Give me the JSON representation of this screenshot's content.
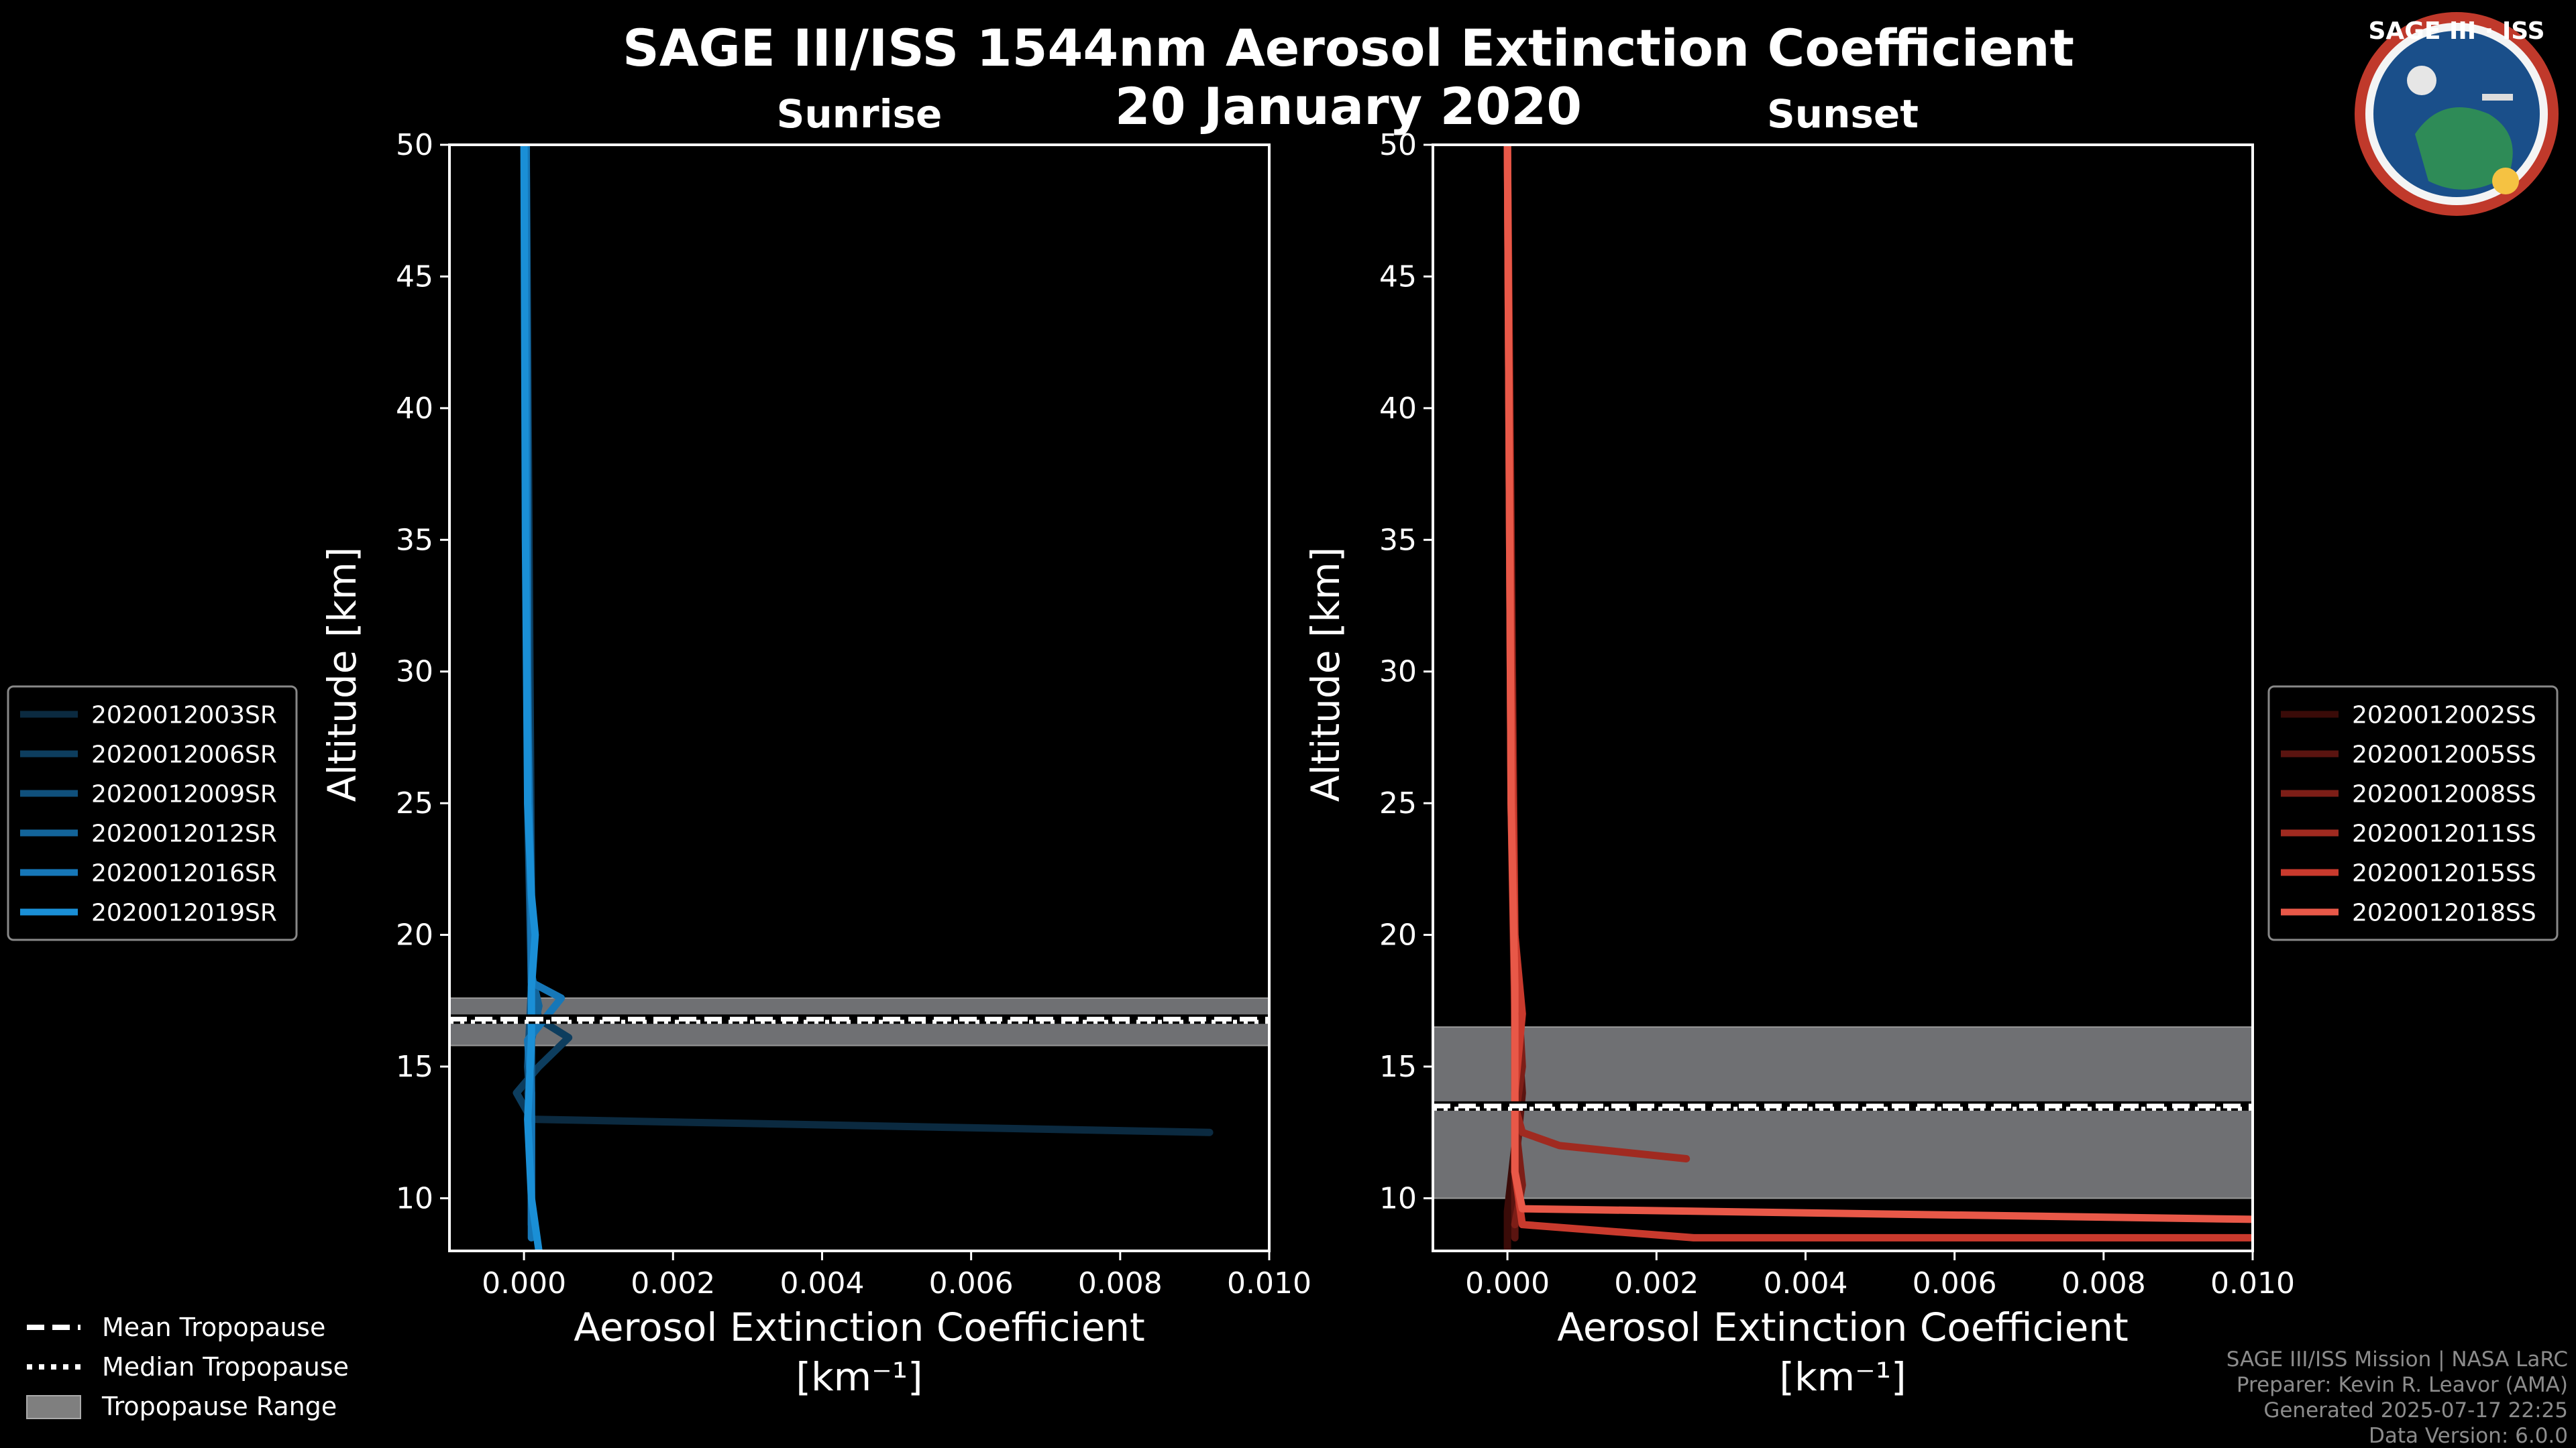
{
  "title": "SAGE III/ISS 1544nm Aerosol Extinction Coefficient",
  "subtitle": "20 January 2020",
  "logo": {
    "text": "SAGE III · ISS",
    "color_ring": "#c0392b",
    "color_bg": "#1a4f8a"
  },
  "footer": {
    "line1": "SAGE III/ISS Mission | NASA LaRC",
    "line2": "Preparer: Kevin R. Leavor (AMA)",
    "line3": "Generated 2025-07-17 22:25",
    "line4": "Data Version: 6.0.0"
  },
  "tropo_legend": {
    "mean": "Mean Tropopause",
    "median": "Median Tropopause",
    "range": "Tropopause Range"
  },
  "chart_data": [
    {
      "type": "line",
      "title": "Sunrise",
      "xlabel": "Aerosol Extinction Coefficient",
      "xunits": "[km⁻¹]",
      "ylabel": "Altitude [km]",
      "xlim": [
        -0.001,
        0.01
      ],
      "ylim": [
        8,
        50
      ],
      "xticks": [
        0.0,
        0.002,
        0.004,
        0.006,
        0.008,
        0.01
      ],
      "xtick_labels": [
        "0.000",
        "0.002",
        "0.004",
        "0.006",
        "0.008",
        "0.010"
      ],
      "yticks": [
        10,
        15,
        20,
        25,
        30,
        35,
        40,
        45,
        50
      ],
      "tropopause": {
        "min": 15.8,
        "max": 17.6,
        "mean": 16.8,
        "median": 16.7
      },
      "series": [
        {
          "name": "2020012003SR",
          "color": "#0b2a40",
          "points": [
            [
              0.0092,
              12.5
            ],
            [
              0.0001,
              13.0
            ],
            [
              5e-05,
              14.0
            ],
            [
              0.0001,
              15.5
            ],
            [
              0.0001,
              20
            ],
            [
              5e-05,
              30
            ],
            [
              3e-05,
              50
            ]
          ]
        },
        {
          "name": "2020012006SR",
          "color": "#0d3d5e",
          "points": [
            [
              0.0001,
              13.0
            ],
            [
              -0.0001,
              14.0
            ],
            [
              0.0002,
              15.0
            ],
            [
              0.0006,
              16.1
            ],
            [
              0.0002,
              16.8
            ],
            [
              0.0001,
              18
            ],
            [
              0.0001,
              22
            ],
            [
              3e-05,
              50
            ]
          ]
        },
        {
          "name": "2020012009SR",
          "color": "#10507c",
          "points": [
            [
              0.0001,
              9
            ],
            [
              0.0001,
              13
            ],
            [
              5e-05,
              15
            ],
            [
              0.0001,
              18
            ],
            [
              5e-05,
              25
            ],
            [
              3e-05,
              50
            ]
          ]
        },
        {
          "name": "2020012012SR",
          "color": "#13649a",
          "points": [
            [
              0.0001,
              9
            ],
            [
              0.0001,
              14
            ],
            [
              0.0001,
              16
            ],
            [
              0.0002,
              17.3
            ],
            [
              0.0001,
              18.5
            ],
            [
              5e-05,
              30
            ],
            [
              3e-05,
              50
            ]
          ]
        },
        {
          "name": "2020012016SR",
          "color": "#1677b8",
          "points": [
            [
              0.0001,
              8.5
            ],
            [
              0.0001,
              14
            ],
            [
              5e-05,
              16
            ],
            [
              0.0005,
              17.6
            ],
            [
              0.0001,
              18.2
            ],
            [
              0.0001,
              21
            ],
            [
              5e-05,
              28
            ],
            [
              3e-05,
              50
            ]
          ]
        },
        {
          "name": "2020012019SR",
          "color": "#1a8fd6",
          "points": [
            [
              0.0002,
              8
            ],
            [
              0.0001,
              10
            ],
            [
              5e-05,
              13
            ],
            [
              0.0001,
              16
            ],
            [
              0.0001,
              18
            ],
            [
              0.00015,
              20
            ],
            [
              0.0001,
              21.5
            ],
            [
              5e-05,
              25
            ],
            [
              2e-05,
              35
            ],
            [
              0.0,
              50
            ]
          ]
        }
      ]
    },
    {
      "type": "line",
      "title": "Sunset",
      "xlabel": "Aerosol Extinction Coefficient",
      "xunits": "[km⁻¹]",
      "ylabel": "Altitude [km]",
      "xlim": [
        -0.001,
        0.01
      ],
      "ylim": [
        8,
        50
      ],
      "xticks": [
        0.0,
        0.002,
        0.004,
        0.006,
        0.008,
        0.01
      ],
      "xtick_labels": [
        "0.000",
        "0.002",
        "0.004",
        "0.006",
        "0.008",
        "0.010"
      ],
      "yticks": [
        10,
        15,
        20,
        25,
        30,
        35,
        40,
        45,
        50
      ],
      "tropopause": {
        "min": 10.0,
        "max": 16.5,
        "mean": 13.5,
        "median": 13.4
      },
      "series": [
        {
          "name": "2020012002SS",
          "color": "#3a0b08",
          "points": [
            [
              0.0,
              8
            ],
            [
              0.0,
              9.5
            ],
            [
              0.0001,
              12
            ],
            [
              0.0001,
              16
            ],
            [
              5e-05,
              25
            ],
            [
              0.0,
              50
            ]
          ]
        },
        {
          "name": "2020012005SS",
          "color": "#5a1410",
          "points": [
            [
              0.0001,
              8.5
            ],
            [
              0.0001,
              11
            ],
            [
              0.0002,
              14
            ],
            [
              0.0001,
              18
            ],
            [
              5e-05,
              30
            ],
            [
              0.0,
              50
            ]
          ]
        },
        {
          "name": "2020012008SS",
          "color": "#7d1e17",
          "points": [
            [
              0.0001,
              9
            ],
            [
              0.0002,
              10.5
            ],
            [
              0.0001,
              13
            ],
            [
              0.0002,
              15
            ],
            [
              0.0001,
              20
            ],
            [
              0.0,
              50
            ]
          ]
        },
        {
          "name": "2020012011SS",
          "color": "#a02a20",
          "points": [
            [
              0.0024,
              11.5
            ],
            [
              0.0007,
              12
            ],
            [
              0.0002,
              12.5
            ],
            [
              0.0001,
              13.5
            ],
            [
              0.0001,
              17
            ],
            [
              5e-05,
              25
            ],
            [
              0.0,
              50
            ]
          ]
        },
        {
          "name": "2020012015SS",
          "color": "#c93a2d",
          "points": [
            [
              0.01,
              8.5
            ],
            [
              0.0025,
              8.5
            ],
            [
              0.0002,
              9
            ],
            [
              0.0001,
              11
            ],
            [
              0.0001,
              14
            ],
            [
              0.0002,
              17
            ],
            [
              0.0001,
              20
            ],
            [
              5e-05,
              30
            ],
            [
              0.0,
              50
            ]
          ]
        },
        {
          "name": "2020012018SS",
          "color": "#e85848",
          "points": [
            [
              0.01,
              9.2
            ],
            [
              0.0002,
              9.6
            ],
            [
              0.0001,
              11
            ],
            [
              0.0001,
              14
            ],
            [
              0.0001,
              18
            ],
            [
              5e-05,
              25
            ],
            [
              0.0,
              50
            ]
          ]
        }
      ]
    }
  ]
}
